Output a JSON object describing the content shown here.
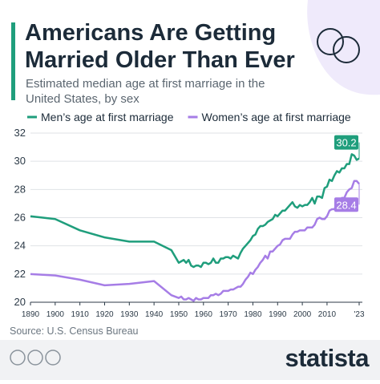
{
  "chart_data": {
    "type": "line",
    "title": "Americans Are Getting Married Older Than Ever",
    "subtitle": "Estimated median age at first marriage in the United States, by sex",
    "source": "Source: U.S. Census Bureau",
    "brand": "statista",
    "x": [
      1890,
      1900,
      1910,
      1920,
      1930,
      1940,
      1947,
      1950,
      1951,
      1952,
      1953,
      1954,
      1955,
      1956,
      1957,
      1958,
      1959,
      1960,
      1961,
      1962,
      1963,
      1964,
      1965,
      1966,
      1967,
      1968,
      1969,
      1970,
      1971,
      1972,
      1973,
      1974,
      1975,
      1976,
      1977,
      1978,
      1979,
      1980,
      1981,
      1982,
      1983,
      1984,
      1985,
      1986,
      1987,
      1988,
      1989,
      1990,
      1991,
      1992,
      1993,
      1994,
      1995,
      1996,
      1997,
      1998,
      1999,
      2000,
      2001,
      2002,
      2003,
      2004,
      2005,
      2006,
      2007,
      2008,
      2009,
      2010,
      2011,
      2012,
      2013,
      2014,
      2015,
      2016,
      2017,
      2018,
      2019,
      2020,
      2021,
      2022,
      2023
    ],
    "series": [
      {
        "name": "Men’s age at first marriage",
        "color": "#1f9e7c",
        "values": [
          26.1,
          25.9,
          25.1,
          24.6,
          24.3,
          24.3,
          23.7,
          22.8,
          22.9,
          23.0,
          22.8,
          23.0,
          22.6,
          22.5,
          22.6,
          22.6,
          22.5,
          22.8,
          22.8,
          22.7,
          22.8,
          23.1,
          22.8,
          22.8,
          23.1,
          23.1,
          23.2,
          23.2,
          23.1,
          23.3,
          23.2,
          23.1,
          23.5,
          23.8,
          24.0,
          24.2,
          24.4,
          24.7,
          24.8,
          25.2,
          25.4,
          25.4,
          25.5,
          25.7,
          25.8,
          25.9,
          26.2,
          26.1,
          26.3,
          26.5,
          26.5,
          26.7,
          26.9,
          27.1,
          26.8,
          26.7,
          26.9,
          26.8,
          26.9,
          26.9,
          27.1,
          27.4,
          27.0,
          27.5,
          27.5,
          27.4,
          28.1,
          28.2,
          28.7,
          28.6,
          29.0,
          29.3,
          29.2,
          29.5,
          29.5,
          29.8,
          29.8,
          30.5,
          30.4,
          30.1,
          30.2
        ]
      },
      {
        "name": "Women’s age at first marriage",
        "color": "#a67de6",
        "values": [
          22.0,
          21.9,
          21.6,
          21.2,
          21.3,
          21.5,
          20.5,
          20.3,
          20.4,
          20.2,
          20.2,
          20.3,
          20.2,
          20.1,
          20.3,
          20.2,
          20.2,
          20.3,
          20.3,
          20.3,
          20.5,
          20.5,
          20.6,
          20.5,
          20.6,
          20.8,
          20.8,
          20.8,
          20.9,
          20.9,
          21.0,
          21.1,
          21.1,
          21.3,
          21.6,
          21.8,
          22.1,
          22.0,
          22.3,
          22.5,
          22.8,
          23.0,
          23.3,
          23.1,
          23.6,
          23.6,
          23.8,
          24.0,
          24.1,
          24.4,
          24.5,
          24.5,
          24.5,
          24.8,
          25.0,
          25.0,
          25.1,
          25.1,
          25.1,
          25.3,
          25.3,
          25.3,
          25.5,
          25.9,
          26.0,
          25.9,
          25.9,
          26.1,
          26.5,
          26.6,
          26.6,
          27.0,
          27.1,
          27.4,
          27.4,
          27.8,
          28.0,
          28.1,
          28.6,
          28.6,
          28.4
        ]
      }
    ],
    "xlim": [
      1890,
      2023
    ],
    "xticks": [
      1890,
      1900,
      1910,
      1920,
      1930,
      1940,
      1950,
      1960,
      1970,
      1980,
      1990,
      2000,
      2010,
      {
        "value": 2023,
        "label": "'23"
      }
    ],
    "ylim": [
      20,
      32
    ],
    "yticks": [
      20,
      22,
      24,
      26,
      28,
      30,
      32
    ],
    "grid": true,
    "legend": "top"
  }
}
